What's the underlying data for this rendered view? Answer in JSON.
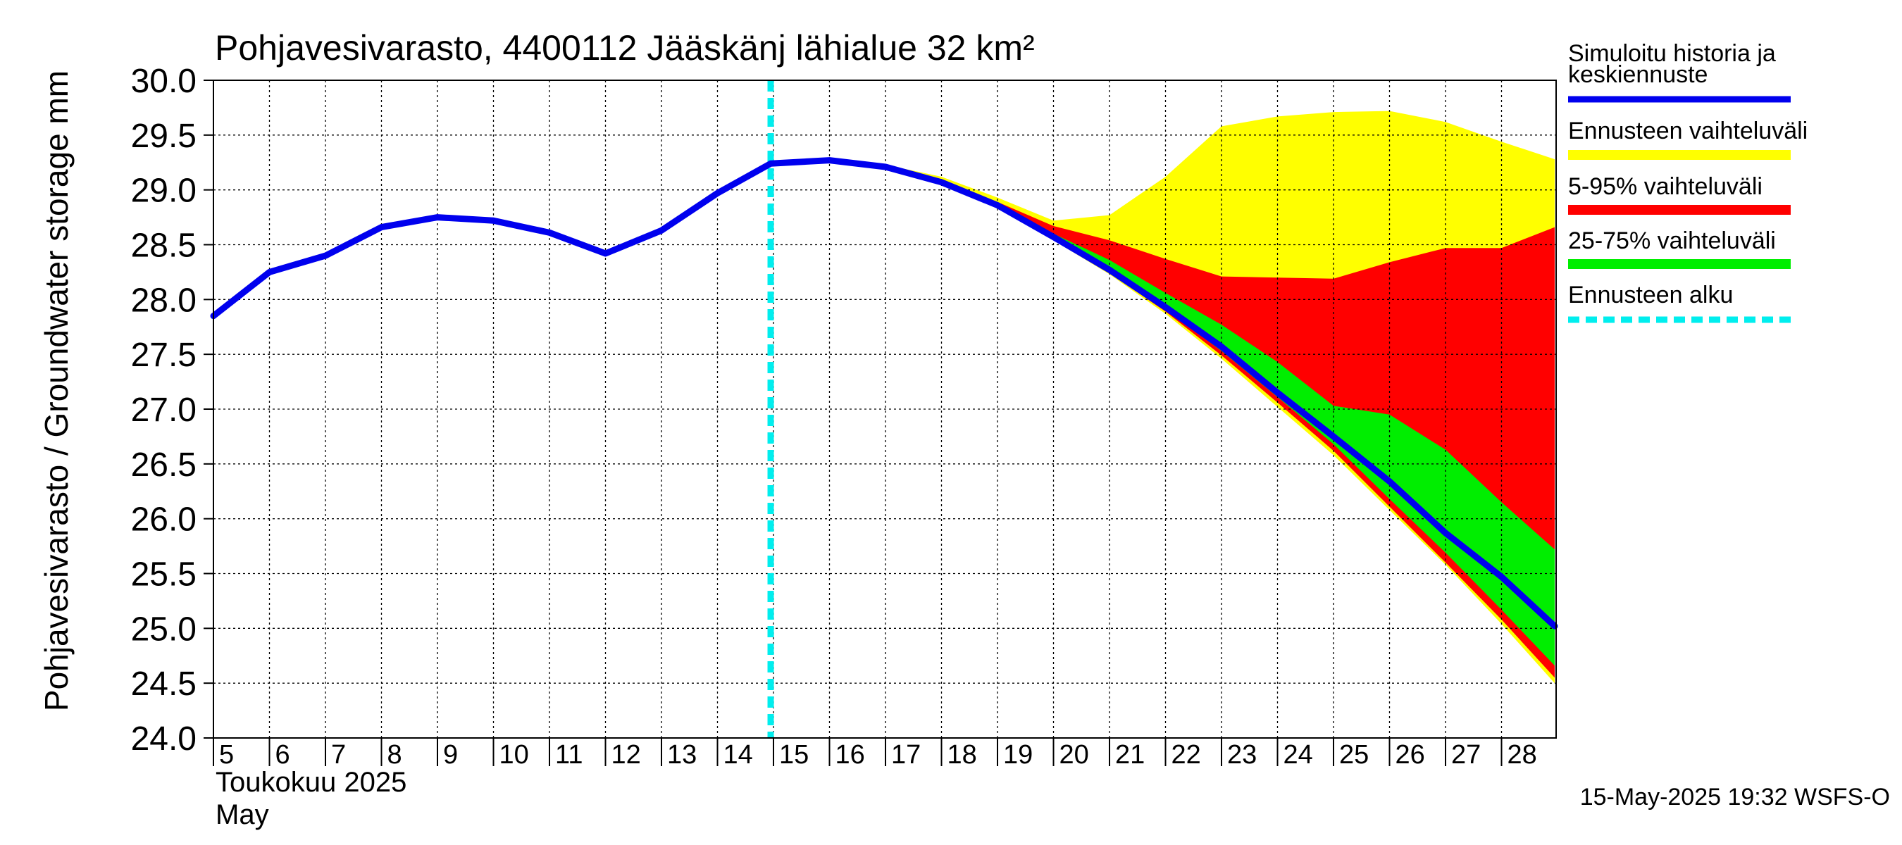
{
  "chart_data": {
    "type": "area",
    "title": "Pohjavesivarasto, 4400112 Jääskänj lähialue 32 km²",
    "ylabel": "Pohjavesivarasto / Groundwater storage   mm",
    "xlabel_line1": "Toukokuu  2025",
    "xlabel_line2": "May",
    "footer": "15-May-2025 19:32 WSFS-O",
    "ylim": [
      24.0,
      30.0
    ],
    "xlim": [
      5,
      28.95
    ],
    "ytick_values": [
      24.0,
      24.5,
      25.0,
      25.5,
      26.0,
      26.5,
      27.0,
      27.5,
      28.0,
      28.5,
      29.0,
      29.5,
      30.0
    ],
    "ytick_labels": [
      "24.0",
      "24.5",
      "25.0",
      "25.5",
      "26.0",
      "26.5",
      "27.0",
      "27.5",
      "28.0",
      "28.5",
      "29.0",
      "29.5",
      "30.0"
    ],
    "xtick_values": [
      5,
      6,
      7,
      8,
      9,
      10,
      11,
      12,
      13,
      14,
      15,
      16,
      17,
      18,
      19,
      20,
      21,
      22,
      23,
      24,
      25,
      26,
      27,
      28
    ],
    "xtick_labels": [
      "5",
      "6",
      "7",
      "8",
      "9",
      "10",
      "11",
      "12",
      "13",
      "14",
      "15",
      "16",
      "17",
      "18",
      "19",
      "20",
      "21",
      "22",
      "23",
      "24",
      "25",
      "26",
      "27",
      "28"
    ],
    "grid": true,
    "legend_position": "right",
    "forecast_start_x": 14.95,
    "legend": [
      {
        "label": "Simuloitu historia ja keskiennuste",
        "color": "#0000ee",
        "style": "line"
      },
      {
        "label": "Ennusteen vaihteluväli",
        "color": "#ffff00",
        "style": "band"
      },
      {
        "label": "5-95% vaihteluväli",
        "color": "#ff0000",
        "style": "band"
      },
      {
        "label": "25-75% vaihteluväli",
        "color": "#00ee00",
        "style": "band"
      },
      {
        "label": "Ennusteen alku",
        "color": "#00eeee",
        "style": "dashed"
      }
    ],
    "series": [
      {
        "name": "Simuloitu historia ja keskiennuste",
        "color": "#0000ee",
        "x": [
          5,
          6,
          7,
          8,
          9,
          10,
          11,
          12,
          13,
          14,
          14.95,
          16,
          17,
          18,
          19,
          20,
          21,
          22,
          23,
          24,
          25,
          26,
          27,
          28,
          28.95
        ],
        "y": [
          27.85,
          28.25,
          28.4,
          28.66,
          28.75,
          28.72,
          28.61,
          28.42,
          28.63,
          28.97,
          29.24,
          29.27,
          29.21,
          29.07,
          28.86,
          28.57,
          28.27,
          27.93,
          27.57,
          27.15,
          26.75,
          26.34,
          25.87,
          25.47,
          25.02
        ]
      }
    ],
    "bands": [
      {
        "name": "Ennusteen vaihteluväli",
        "color": "#ffff00",
        "x": [
          14.95,
          16,
          17,
          18,
          19,
          20,
          21,
          22,
          23,
          24,
          25,
          26,
          27,
          28,
          28.95
        ],
        "upper": [
          29.24,
          29.27,
          29.23,
          29.12,
          28.93,
          28.72,
          28.77,
          29.12,
          29.58,
          29.67,
          29.71,
          29.72,
          29.62,
          29.44,
          29.28
        ],
        "lower": [
          29.24,
          29.27,
          29.2,
          29.05,
          28.84,
          28.54,
          28.23,
          27.87,
          27.46,
          27.02,
          26.58,
          26.08,
          25.58,
          25.04,
          24.5
        ]
      },
      {
        "name": "5-95% vaihteluväli",
        "color": "#ff0000",
        "x": [
          14.95,
          16,
          17,
          18,
          19,
          20,
          21,
          22,
          23,
          24,
          25,
          26,
          27,
          28,
          28.95
        ],
        "upper": [
          29.24,
          29.27,
          29.22,
          29.09,
          28.89,
          28.67,
          28.54,
          28.37,
          28.21,
          28.2,
          28.19,
          28.34,
          28.47,
          28.47,
          28.66
        ],
        "lower": [
          29.24,
          29.27,
          29.2,
          29.05,
          28.84,
          28.55,
          28.24,
          27.89,
          27.49,
          27.06,
          26.62,
          26.11,
          25.6,
          25.08,
          24.55
        ]
      },
      {
        "name": "25-75% vaihteluväli",
        "color": "#00ee00",
        "x": [
          14.95,
          16,
          17,
          18,
          19,
          20,
          21,
          22,
          23,
          24,
          25,
          26,
          27,
          28,
          28.95
        ],
        "upper": [
          29.24,
          29.27,
          29.21,
          29.08,
          28.87,
          28.6,
          28.36,
          28.06,
          27.77,
          27.43,
          27.03,
          26.95,
          26.63,
          26.15,
          25.72
        ],
        "lower": [
          29.24,
          29.27,
          29.2,
          29.06,
          28.85,
          28.56,
          28.26,
          27.91,
          27.53,
          27.11,
          26.68,
          26.18,
          25.69,
          25.17,
          24.66
        ]
      }
    ]
  }
}
